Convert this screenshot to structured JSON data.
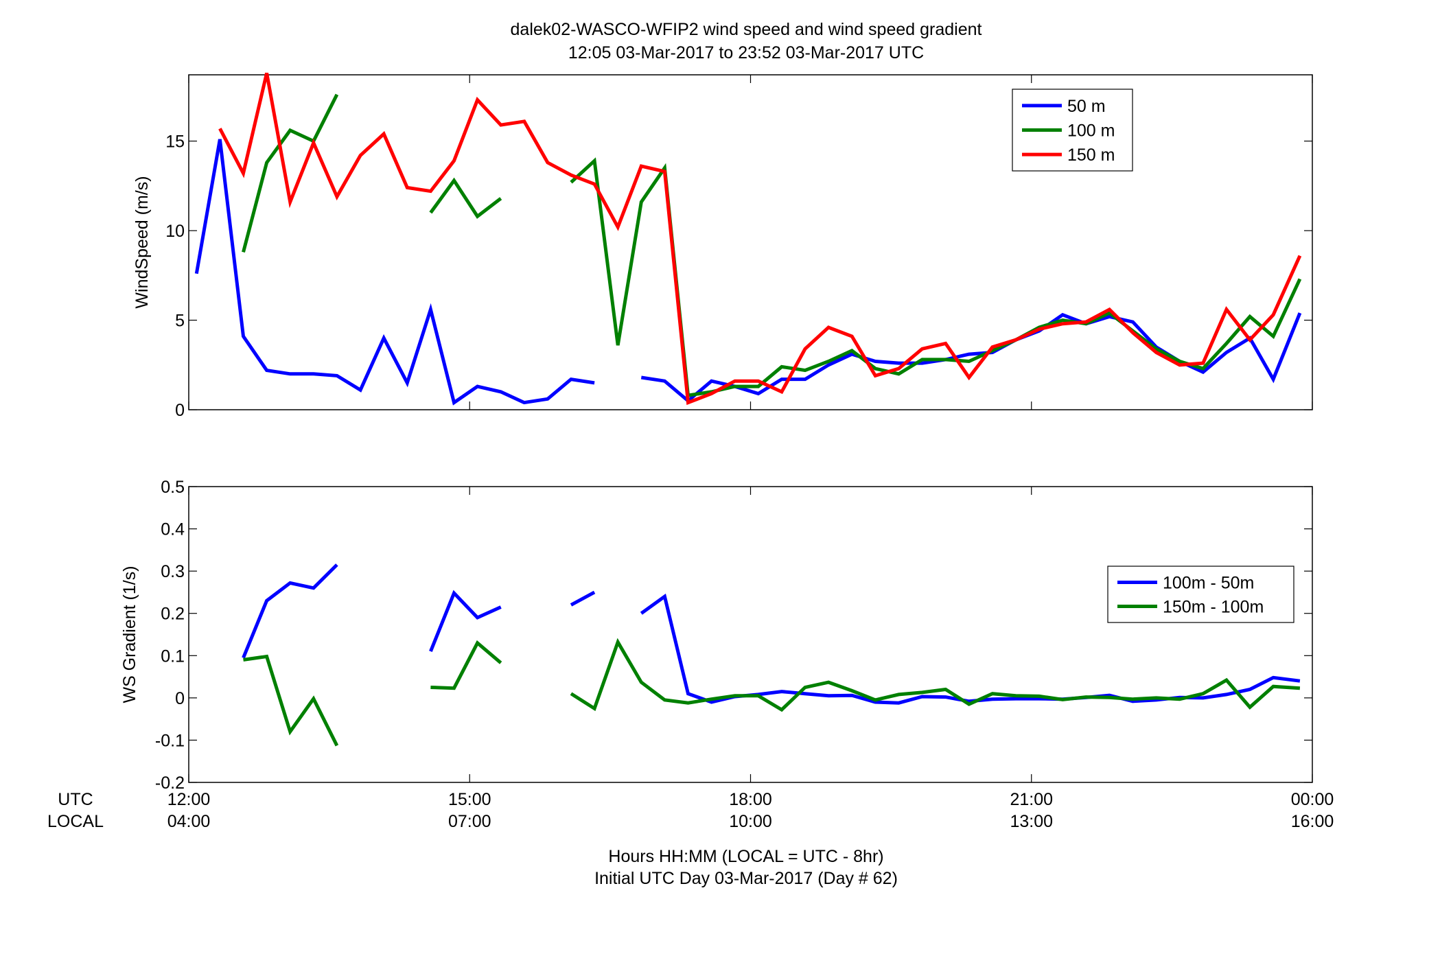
{
  "figure": {
    "title_line1": "dalek02-WASCO-WFIP2  wind speed and wind speed gradient",
    "title_line2": "12:05 03-Mar-2017 to 23:52 03-Mar-2017  UTC",
    "xlabel_line1": "Hours HH:MM  (LOCAL = UTC - 8hr)",
    "xlabel_line2": "Initial UTC Day 03-Mar-2017 (Day # 62)",
    "row_label_utc": "UTC",
    "row_label_local": "LOCAL",
    "colors": {
      "blue": "#0000ff",
      "green": "#008000",
      "red": "#ff0000"
    }
  },
  "chart_data": [
    {
      "type": "line",
      "ylabel": "WindSpeed (m/s)",
      "xlim": [
        12,
        24
      ],
      "ylim": [
        0,
        18.7
      ],
      "yticks": [
        0,
        5,
        10,
        15
      ],
      "ytick_labels": [
        "0",
        "5",
        "10",
        "15"
      ],
      "xticks": [
        12,
        15,
        18,
        21,
        24
      ],
      "xtick_labels_utc": [
        "12:00",
        "15:00",
        "18:00",
        "21:00",
        "00:00"
      ],
      "xtick_labels_local": [
        "04:00",
        "07:00",
        "10:00",
        "13:00",
        "16:00"
      ],
      "grid": false,
      "legend_position": "top-right",
      "x": [
        12.083,
        12.333,
        12.583,
        12.833,
        13.083,
        13.333,
        13.583,
        13.833,
        14.083,
        14.333,
        14.583,
        14.833,
        15.083,
        15.333,
        15.583,
        15.833,
        16.083,
        16.333,
        16.583,
        16.833,
        17.083,
        17.333,
        17.583,
        17.833,
        18.083,
        18.333,
        18.583,
        18.833,
        19.083,
        19.333,
        19.583,
        19.833,
        20.083,
        20.333,
        20.583,
        20.833,
        21.083,
        21.333,
        21.583,
        21.833,
        22.083,
        22.333,
        22.583,
        22.833,
        23.083,
        23.333,
        23.583,
        23.867
      ],
      "series": [
        {
          "name": "50 m",
          "color": "#0000ff",
          "values": [
            7.6,
            15.1,
            4.1,
            2.2,
            2.0,
            2.0,
            1.9,
            1.1,
            4.0,
            1.5,
            5.6,
            0.4,
            1.3,
            1.0,
            0.4,
            0.6,
            1.7,
            1.5,
            null,
            1.8,
            1.6,
            0.5,
            1.6,
            1.3,
            0.9,
            1.7,
            1.7,
            2.5,
            3.1,
            2.7,
            2.6,
            2.6,
            2.8,
            3.1,
            3.2,
            3.9,
            4.4,
            5.3,
            4.8,
            5.2,
            4.9,
            3.5,
            2.7,
            2.1,
            3.2,
            4.0,
            1.7,
            5.4
          ]
        },
        {
          "name": "100 m",
          "color": "#008000",
          "values": [
            null,
            null,
            8.8,
            13.8,
            15.6,
            15.0,
            17.6,
            null,
            null,
            null,
            11.0,
            12.8,
            10.8,
            11.8,
            null,
            null,
            12.7,
            13.9,
            3.6,
            11.6,
            13.5,
            0.8,
            1.0,
            1.3,
            1.3,
            2.4,
            2.2,
            2.7,
            3.3,
            2.3,
            2.0,
            2.8,
            2.8,
            2.7,
            3.3,
            3.9,
            4.6,
            5.0,
            4.8,
            5.4,
            4.4,
            3.4,
            2.7,
            2.3,
            3.7,
            5.2,
            4.1,
            7.3
          ]
        },
        {
          "name": "150 m",
          "color": "#ff0000",
          "values": [
            null,
            15.7,
            13.2,
            18.8,
            11.6,
            14.9,
            11.9,
            14.2,
            15.4,
            12.4,
            12.2,
            13.9,
            17.3,
            15.9,
            16.1,
            13.8,
            13.1,
            12.6,
            10.2,
            13.6,
            13.3,
            0.4,
            0.9,
            1.6,
            1.6,
            1.0,
            3.4,
            4.6,
            4.1,
            1.9,
            2.3,
            3.4,
            3.7,
            1.8,
            3.5,
            3.9,
            4.5,
            4.8,
            4.9,
            5.6,
            4.3,
            3.2,
            2.5,
            2.6,
            5.6,
            3.9,
            5.3,
            8.6
          ]
        }
      ]
    },
    {
      "type": "line",
      "ylabel": "WS Gradient (1/s)",
      "xlim": [
        12,
        24
      ],
      "ylim": [
        -0.2,
        0.5
      ],
      "yticks": [
        -0.2,
        -0.1,
        0,
        0.1,
        0.2,
        0.3,
        0.4,
        0.5
      ],
      "ytick_labels": [
        "-0.2",
        "-0.1",
        "0",
        "0.1",
        "0.2",
        "0.3",
        "0.4",
        "0.5"
      ],
      "xticks": [
        12,
        15,
        18,
        21,
        24
      ],
      "xtick_labels_utc": [
        "12:00",
        "15:00",
        "18:00",
        "21:00",
        "00:00"
      ],
      "xtick_labels_local": [
        "04:00",
        "07:00",
        "10:00",
        "13:00",
        "16:00"
      ],
      "grid": false,
      "legend_position": "middle-right",
      "x": [
        12.083,
        12.333,
        12.583,
        12.833,
        13.083,
        13.333,
        13.583,
        13.833,
        14.083,
        14.333,
        14.583,
        14.833,
        15.083,
        15.333,
        15.583,
        15.833,
        16.083,
        16.333,
        16.583,
        16.833,
        17.083,
        17.333,
        17.583,
        17.833,
        18.083,
        18.333,
        18.583,
        18.833,
        19.083,
        19.333,
        19.583,
        19.833,
        20.083,
        20.333,
        20.583,
        20.833,
        21.083,
        21.333,
        21.583,
        21.833,
        22.083,
        22.333,
        22.583,
        22.833,
        23.083,
        23.333,
        23.583,
        23.867
      ],
      "series": [
        {
          "name": "100m - 50m",
          "color": "#0000ff",
          "values": [
            null,
            null,
            0.095,
            0.23,
            0.272,
            0.26,
            0.315,
            null,
            null,
            null,
            0.11,
            0.248,
            0.19,
            0.215,
            null,
            null,
            0.22,
            0.25,
            null,
            0.2,
            0.24,
            0.01,
            -0.01,
            0.003,
            0.008,
            0.015,
            0.01,
            0.005,
            0.006,
            -0.01,
            -0.012,
            0.003,
            0.002,
            -0.008,
            -0.003,
            -0.002,
            -0.002,
            -0.003,
            0.001,
            0.006,
            -0.008,
            -0.005,
            0.001,
            0.0,
            0.008,
            0.02,
            0.048,
            0.04
          ]
        },
        {
          "name": "150m - 100m",
          "color": "#008000",
          "values": [
            null,
            null,
            0.09,
            0.098,
            -0.08,
            -0.002,
            -0.113,
            null,
            null,
            null,
            0.025,
            0.023,
            0.13,
            0.083,
            null,
            null,
            0.01,
            -0.025,
            0.132,
            0.037,
            -0.005,
            -0.012,
            -0.003,
            0.005,
            0.005,
            -0.028,
            0.025,
            0.037,
            0.017,
            -0.005,
            0.008,
            0.013,
            0.02,
            -0.015,
            0.01,
            0.005,
            0.004,
            -0.004,
            0.002,
            0.001,
            -0.003,
            0.0,
            -0.003,
            0.01,
            0.042,
            -0.022,
            0.027,
            0.023
          ]
        }
      ]
    }
  ]
}
